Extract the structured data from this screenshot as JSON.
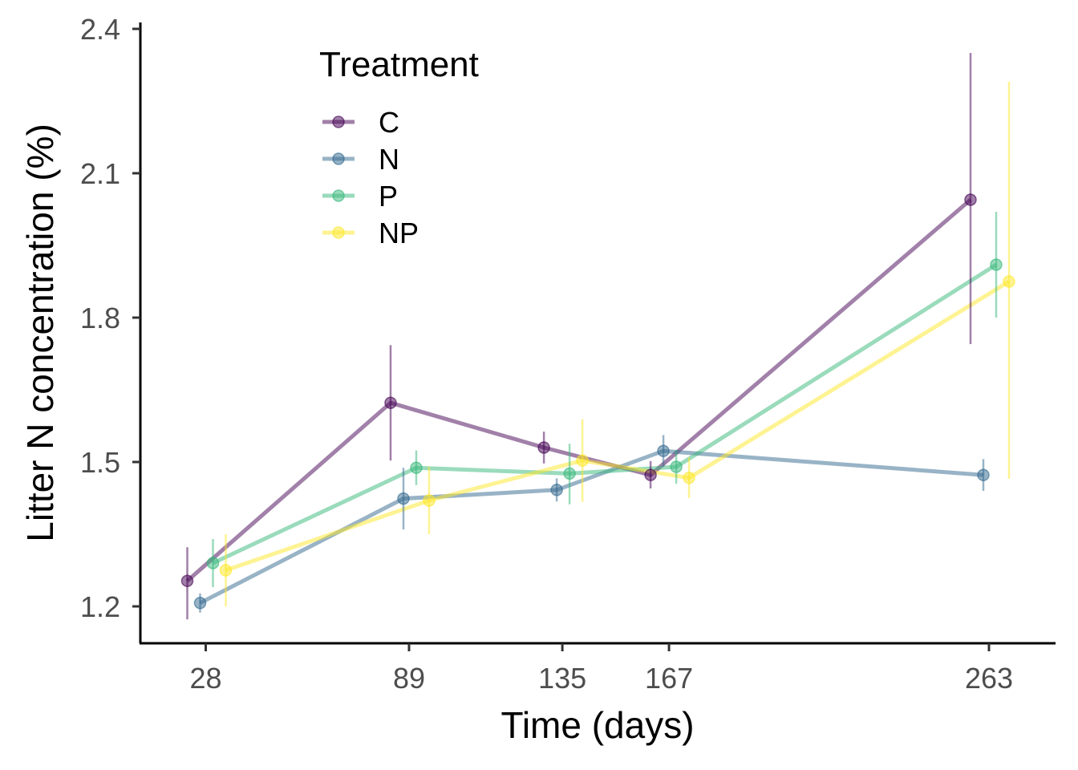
{
  "chart_data": {
    "type": "line",
    "xlabel": "Time (days)",
    "ylabel": "Litter N concentration (%)",
    "x_ticks": [
      28,
      89,
      135,
      167,
      263
    ],
    "y_ticks": [
      1.2,
      1.5,
      1.8,
      2.1,
      2.4
    ],
    "y_tick_labels": [
      "1.2",
      "1.5",
      "1.8",
      "2.1",
      "2.4"
    ],
    "ylim": [
      1.12,
      2.4
    ],
    "grid": false,
    "legend": {
      "title": "Treatment",
      "placement": "top-left inside"
    },
    "series": [
      {
        "name": "C",
        "color": "#440154",
        "points": [
          {
            "x": 28,
            "y": 1.253,
            "lo": 1.173,
            "hi": 1.323
          },
          {
            "x": 89,
            "y": 1.623,
            "lo": 1.503,
            "hi": 1.743
          },
          {
            "x": 135,
            "y": 1.53,
            "lo": 1.497,
            "hi": 1.563
          },
          {
            "x": 167,
            "y": 1.473,
            "lo": 1.445,
            "hi": 1.502
          },
          {
            "x": 263,
            "y": 2.045,
            "lo": 1.745,
            "hi": 2.35
          }
        ]
      },
      {
        "name": "N",
        "color": "#31688e",
        "points": [
          {
            "x": 28,
            "y": 1.207,
            "lo": 1.187,
            "hi": 1.227
          },
          {
            "x": 89,
            "y": 1.424,
            "lo": 1.36,
            "hi": 1.488
          },
          {
            "x": 135,
            "y": 1.442,
            "lo": 1.418,
            "hi": 1.466
          },
          {
            "x": 167,
            "y": 1.523,
            "lo": 1.49,
            "hi": 1.556
          },
          {
            "x": 263,
            "y": 1.473,
            "lo": 1.44,
            "hi": 1.506
          }
        ]
      },
      {
        "name": "P",
        "color": "#35b779",
        "points": [
          {
            "x": 28,
            "y": 1.29,
            "lo": 1.24,
            "hi": 1.34
          },
          {
            "x": 89,
            "y": 1.488,
            "lo": 1.452,
            "hi": 1.524
          },
          {
            "x": 135,
            "y": 1.476,
            "lo": 1.412,
            "hi": 1.538
          },
          {
            "x": 167,
            "y": 1.49,
            "lo": 1.455,
            "hi": 1.525
          },
          {
            "x": 263,
            "y": 1.91,
            "lo": 1.8,
            "hi": 2.02
          }
        ]
      },
      {
        "name": "NP",
        "color": "#fde725",
        "points": [
          {
            "x": 28,
            "y": 1.275,
            "lo": 1.2,
            "hi": 1.35
          },
          {
            "x": 89,
            "y": 1.42,
            "lo": 1.35,
            "hi": 1.49
          },
          {
            "x": 135,
            "y": 1.503,
            "lo": 1.417,
            "hi": 1.589
          },
          {
            "x": 167,
            "y": 1.467,
            "lo": 1.425,
            "hi": 1.51
          },
          {
            "x": 263,
            "y": 1.875,
            "lo": 1.465,
            "hi": 2.29
          }
        ]
      }
    ]
  }
}
